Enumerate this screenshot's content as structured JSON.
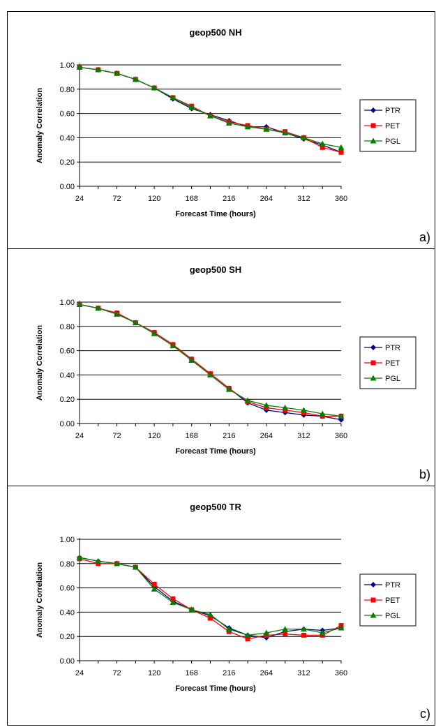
{
  "charts": [
    {
      "panel_tag": "a)",
      "chart_data": {
        "type": "line",
        "title": "geop500 NH",
        "xlabel": "Forecast Time (hours)",
        "ylabel": "Anomaly Correlation",
        "x": [
          24,
          48,
          72,
          96,
          120,
          144,
          168,
          192,
          216,
          240,
          264,
          288,
          312,
          336,
          360
        ],
        "xticks": [
          "24",
          "72",
          "120",
          "168",
          "216",
          "264",
          "312",
          "360"
        ],
        "yticks": [
          "0.00",
          "0.20",
          "0.40",
          "0.60",
          "0.80",
          "1.00"
        ],
        "ylim": [
          0,
          1
        ],
        "grid": "horizontal",
        "legend": "right",
        "series": [
          {
            "name": "PTR",
            "color": "#000080",
            "marker": "diamond",
            "values": [
              0.98,
              0.96,
              0.93,
              0.88,
              0.81,
              0.72,
              0.64,
              0.59,
              0.54,
              0.49,
              0.49,
              0.44,
              0.39,
              0.34,
              0.28
            ]
          },
          {
            "name": "PET",
            "color": "#ff0000",
            "marker": "square",
            "values": [
              0.98,
              0.96,
              0.93,
              0.88,
              0.81,
              0.73,
              0.66,
              0.58,
              0.53,
              0.5,
              0.47,
              0.45,
              0.4,
              0.32,
              0.28
            ]
          },
          {
            "name": "PGL",
            "color": "#008000",
            "marker": "triangle",
            "values": [
              0.98,
              0.96,
              0.93,
              0.88,
              0.81,
              0.73,
              0.65,
              0.58,
              0.52,
              0.49,
              0.47,
              0.44,
              0.4,
              0.35,
              0.32
            ]
          }
        ]
      }
    },
    {
      "panel_tag": "b)",
      "chart_data": {
        "type": "line",
        "title": "geop500 SH",
        "xlabel": "Forecast Time (hours)",
        "ylabel": "Anomaly Correlation",
        "x": [
          24,
          48,
          72,
          96,
          120,
          144,
          168,
          192,
          216,
          240,
          264,
          288,
          312,
          336,
          360
        ],
        "xticks": [
          "24",
          "72",
          "120",
          "168",
          "216",
          "264",
          "312",
          "360"
        ],
        "yticks": [
          "0.00",
          "0.20",
          "0.40",
          "0.60",
          "0.80",
          "1.00"
        ],
        "ylim": [
          0,
          1
        ],
        "grid": "horizontal",
        "legend": "right",
        "series": [
          {
            "name": "PTR",
            "color": "#000080",
            "marker": "diamond",
            "values": [
              0.98,
              0.95,
              0.91,
              0.83,
              0.75,
              0.65,
              0.53,
              0.41,
              0.29,
              0.17,
              0.11,
              0.09,
              0.07,
              0.06,
              0.03
            ]
          },
          {
            "name": "PET",
            "color": "#ff0000",
            "marker": "square",
            "values": [
              0.98,
              0.95,
              0.91,
              0.83,
              0.75,
              0.65,
              0.53,
              0.41,
              0.29,
              0.18,
              0.13,
              0.11,
              0.09,
              0.06,
              0.06
            ]
          },
          {
            "name": "PGL",
            "color": "#008000",
            "marker": "triangle",
            "values": [
              0.98,
              0.95,
              0.9,
              0.83,
              0.74,
              0.64,
              0.52,
              0.4,
              0.28,
              0.19,
              0.15,
              0.13,
              0.11,
              0.08,
              0.06
            ]
          }
        ]
      }
    },
    {
      "panel_tag": "c)",
      "chart_data": {
        "type": "line",
        "title": "geop500 TR",
        "xlabel": "Forecast Time (hours)",
        "ylabel": "Anomaly Correlation",
        "x": [
          24,
          48,
          72,
          96,
          120,
          144,
          168,
          192,
          216,
          240,
          264,
          288,
          312,
          336,
          360
        ],
        "xticks": [
          "24",
          "72",
          "120",
          "168",
          "216",
          "264",
          "312",
          "360"
        ],
        "yticks": [
          "0.00",
          "0.20",
          "0.40",
          "0.60",
          "0.80",
          "1.00"
        ],
        "ylim": [
          0,
          1
        ],
        "grid": "horizontal",
        "legend": "right",
        "series": [
          {
            "name": "PTR",
            "color": "#000080",
            "marker": "diamond",
            "values": [
              0.85,
              0.82,
              0.8,
              0.77,
              0.61,
              0.49,
              0.42,
              0.37,
              0.27,
              0.21,
              0.19,
              0.24,
              0.26,
              0.25,
              0.27
            ]
          },
          {
            "name": "PET",
            "color": "#ff0000",
            "marker": "square",
            "values": [
              0.84,
              0.8,
              0.8,
              0.77,
              0.63,
              0.51,
              0.42,
              0.35,
              0.24,
              0.18,
              0.21,
              0.22,
              0.21,
              0.21,
              0.29
            ]
          },
          {
            "name": "PGL",
            "color": "#008000",
            "marker": "triangle",
            "values": [
              0.85,
              0.82,
              0.8,
              0.77,
              0.59,
              0.48,
              0.42,
              0.38,
              0.26,
              0.21,
              0.23,
              0.26,
              0.26,
              0.23,
              0.27
            ]
          }
        ]
      }
    }
  ]
}
